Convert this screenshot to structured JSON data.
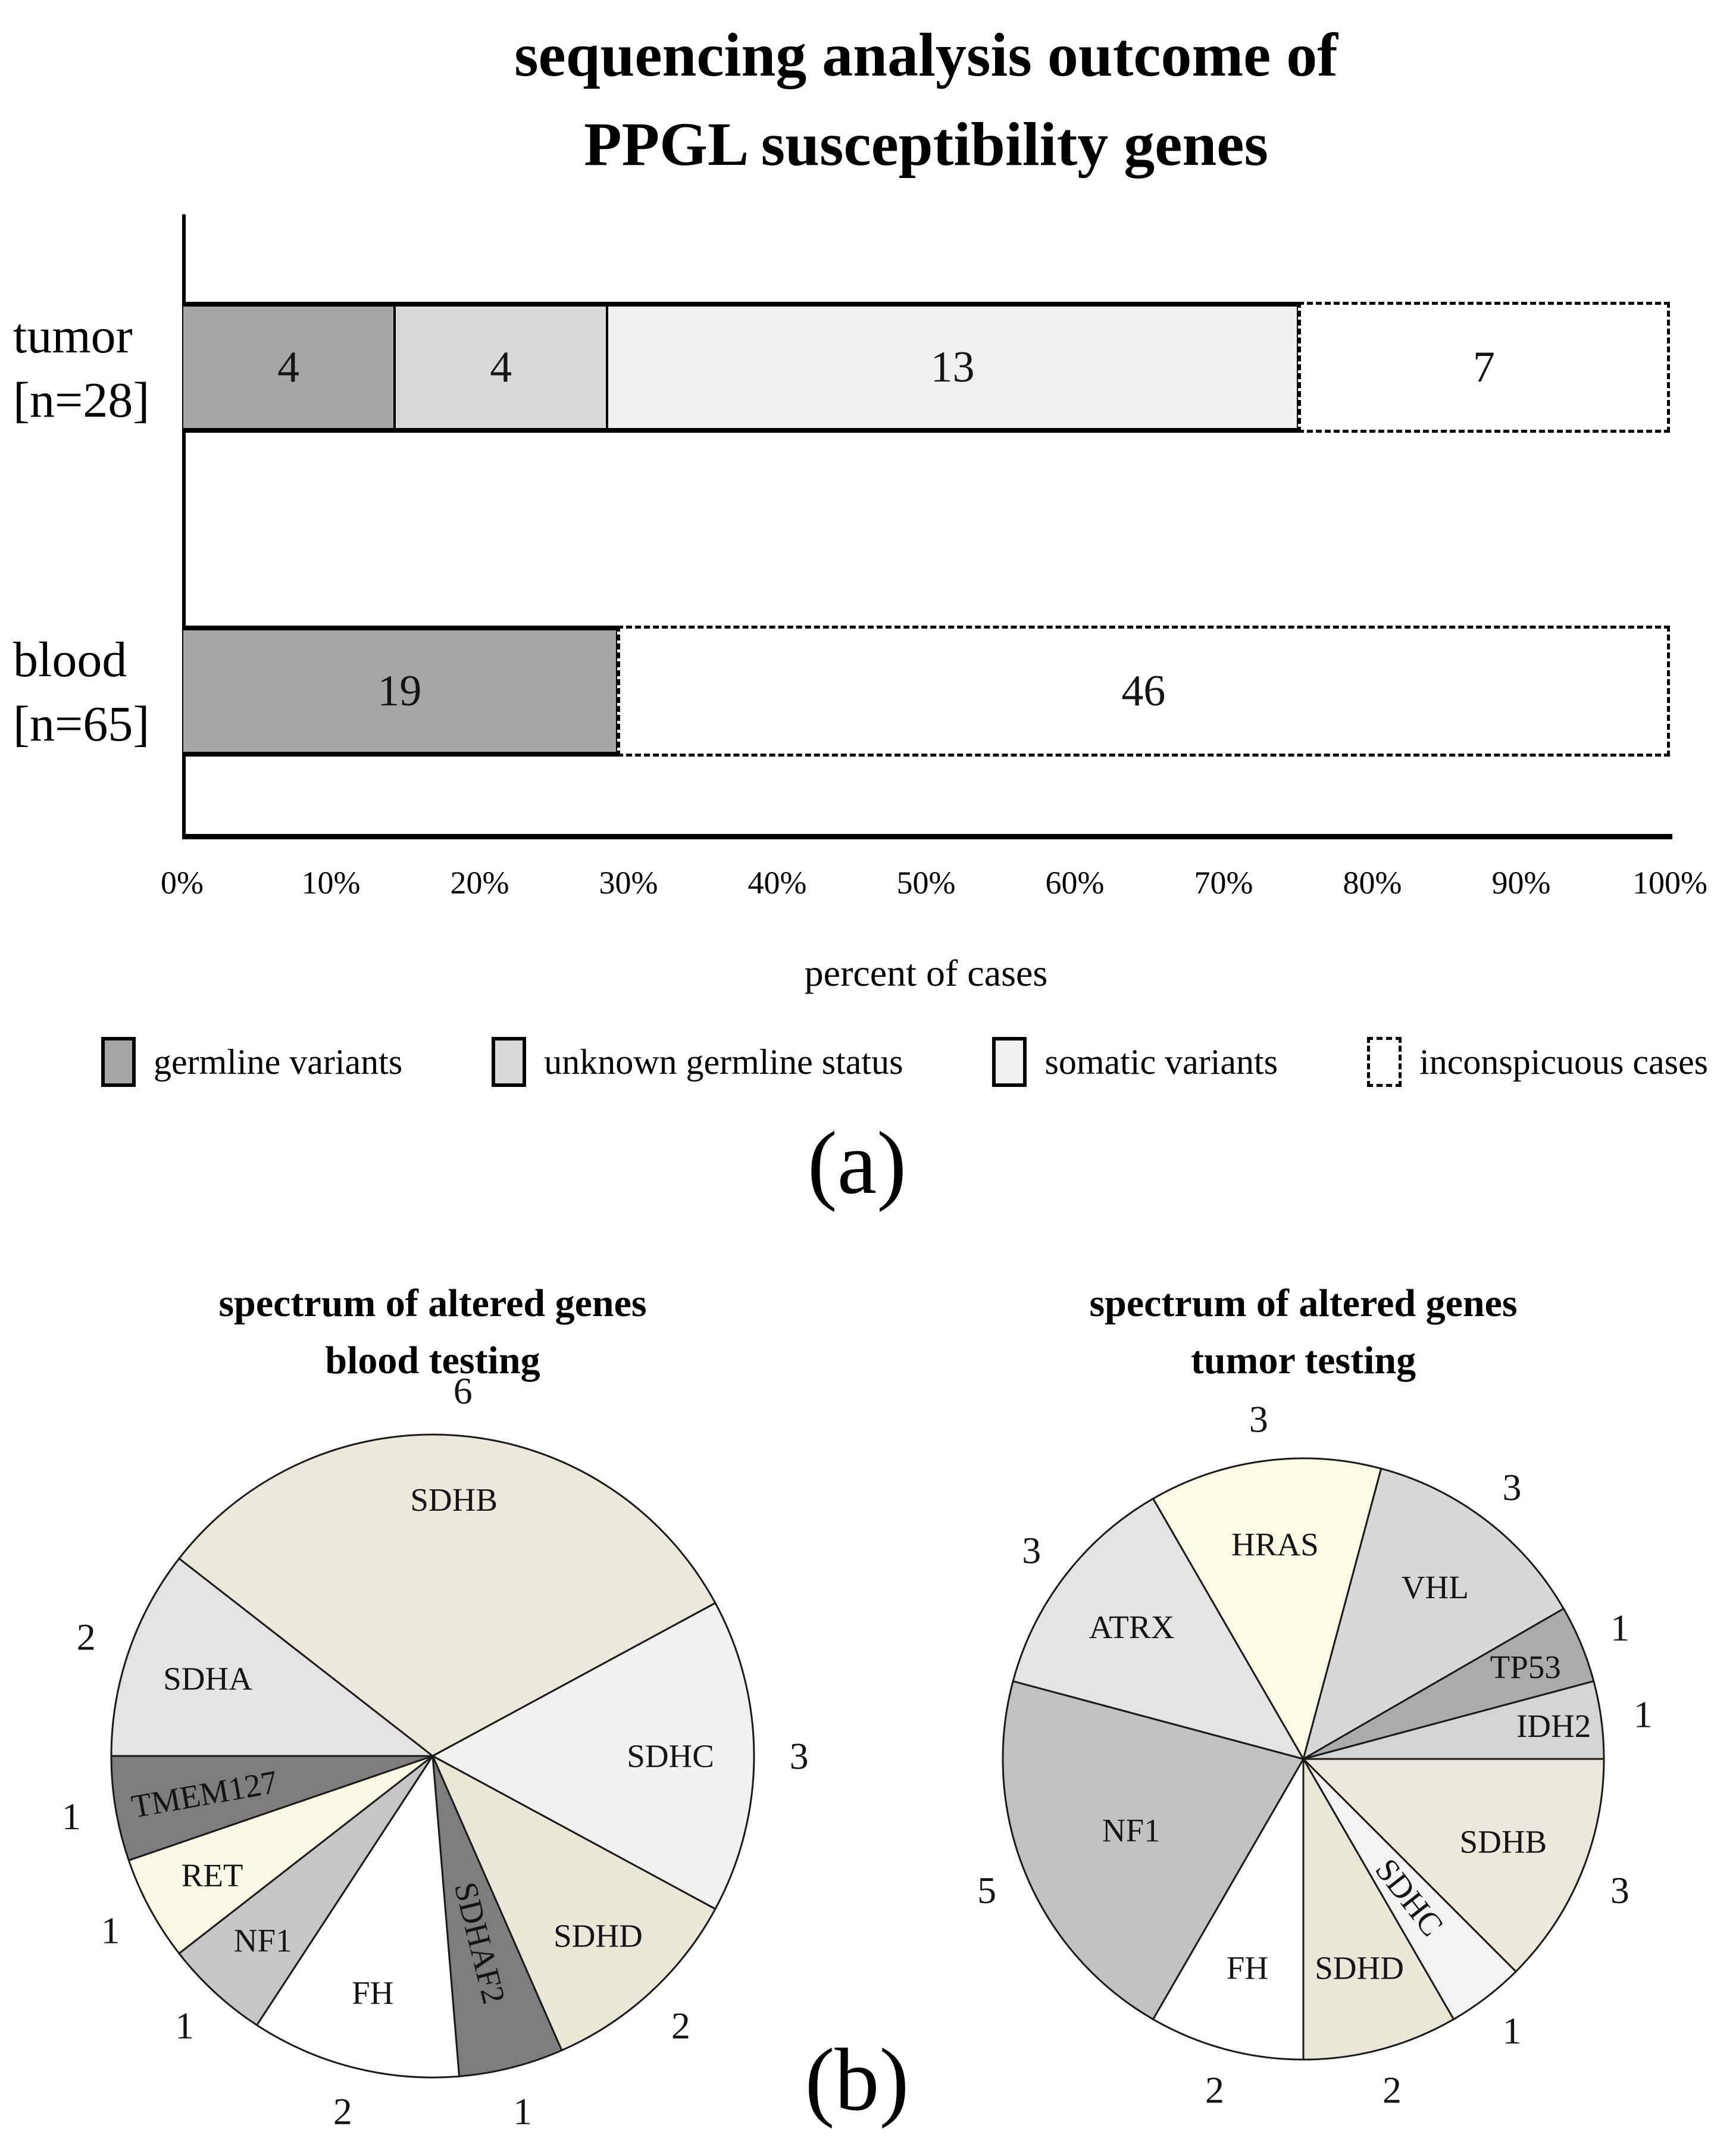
{
  "page": {
    "background": "#ffffff",
    "panel_a_label": "(a)",
    "panel_b_label": "(b)"
  },
  "chart_data": [
    {
      "type": "bar",
      "orientation": "horizontal-stacked",
      "title": "sequencing analysis outcome of PPGL susceptibility genes",
      "title_lines": [
        "sequencing analysis outcome of",
        "PPGL susceptibility genes"
      ],
      "categories": [
        "tumor [n=28]",
        "blood [n=65]"
      ],
      "category_label_lines": [
        [
          "tumor",
          "[n=28]"
        ],
        [
          "blood",
          "[n=65]"
        ]
      ],
      "n": [
        28,
        65
      ],
      "series": [
        {
          "name": "germline variants",
          "values": [
            4,
            19
          ],
          "color": "#a6a6a6",
          "border": "solid"
        },
        {
          "name": "unknown germline status",
          "values": [
            4,
            0
          ],
          "color": "#d9d9d9",
          "border": "solid"
        },
        {
          "name": "somatic variants",
          "values": [
            13,
            0
          ],
          "color": "#f0f0ee",
          "border": "solid"
        },
        {
          "name": "inconspicuous cases",
          "values": [
            7,
            46
          ],
          "color": "#ffffff",
          "border": "dashed"
        }
      ],
      "xlabel": "percent of cases",
      "x_ticks": [
        "0%",
        "10%",
        "20%",
        "30%",
        "40%",
        "50%",
        "60%",
        "70%",
        "80%",
        "90%",
        "100%"
      ],
      "xlim": [
        0,
        100
      ],
      "grid": false,
      "legend_position": "bottom",
      "ink_color": "#000000"
    },
    {
      "type": "pie",
      "title": "spectrum of altered genes blood testing",
      "title_lines": [
        "spectrum of altered genes",
        "blood testing"
      ],
      "total": 19,
      "start_angle_deg": -52.105,
      "direction": "clockwise",
      "slices": [
        {
          "label": "SDHB",
          "value": 6,
          "color": "#ece9dc",
          "label_r": 0.8,
          "label_rot": 0
        },
        {
          "label": "SDHC",
          "value": 3,
          "color": "#f1f1ef",
          "label_r": 0.74,
          "label_rot": 0
        },
        {
          "label": "SDHD",
          "value": 2,
          "color": "#eae7d8",
          "label_r": 0.76,
          "label_rot": 0
        },
        {
          "label": "SDHAF2",
          "value": 1,
          "color": "#7d7d7d",
          "label_r": 0.6,
          "label_rot": 76
        },
        {
          "label": "FH",
          "value": 2,
          "color": "#ffffff",
          "label_r": 0.76,
          "label_rot": 0
        },
        {
          "label": "NF1",
          "value": 1,
          "color": "#c6c6c6",
          "label_r": 0.78,
          "label_rot": 0
        },
        {
          "label": "RET",
          "value": 1,
          "color": "#fafae6",
          "label_r": 0.78,
          "label_rot": 0
        },
        {
          "label": "TMEM127",
          "value": 1,
          "color": "#7d7d7d",
          "label_r": 0.72,
          "label_rot": -10
        },
        {
          "label": "SDHA",
          "value": 2,
          "color": "#e3e3e3",
          "label_r": 0.74,
          "label_rot": 0
        }
      ]
    },
    {
      "type": "pie",
      "title": "spectrum of altered genes tumor testing",
      "title_lines": [
        "spectrum of altered genes",
        "tumor testing"
      ],
      "total": 24,
      "start_angle_deg": -30,
      "direction": "clockwise",
      "slices": [
        {
          "label": "HRAS",
          "value": 3,
          "color": "#fbfbe6",
          "label_r": 0.72,
          "label_rot": 0
        },
        {
          "label": "VHL",
          "value": 3,
          "color": "#d8d8d8",
          "label_r": 0.72,
          "label_rot": 0
        },
        {
          "label": "TP53",
          "value": 1,
          "color": "#ababab",
          "label_r": 0.8,
          "label_rot": 0
        },
        {
          "label": "IDH2",
          "value": 1,
          "color": "#d4d4d4",
          "label_r": 0.84,
          "label_rot": 0
        },
        {
          "label": "SDHB",
          "value": 3,
          "color": "#ece9dc",
          "label_r": 0.72,
          "label_rot": 0
        },
        {
          "label": "SDHC",
          "value": 1,
          "color": "#f2f2f0",
          "label_r": 0.58,
          "label_rot": 52
        },
        {
          "label": "SDHD",
          "value": 2,
          "color": "#eae7d8",
          "label_r": 0.72,
          "label_rot": 0
        },
        {
          "label": "FH",
          "value": 2,
          "color": "#ffffff",
          "label_r": 0.72,
          "label_rot": 0
        },
        {
          "label": "NF1",
          "value": 5,
          "color": "#c2c2c2",
          "label_r": 0.62,
          "label_rot": 0
        },
        {
          "label": "ATRX",
          "value": 3,
          "color": "#e4e4e4",
          "label_r": 0.72,
          "label_rot": 0
        }
      ]
    }
  ]
}
